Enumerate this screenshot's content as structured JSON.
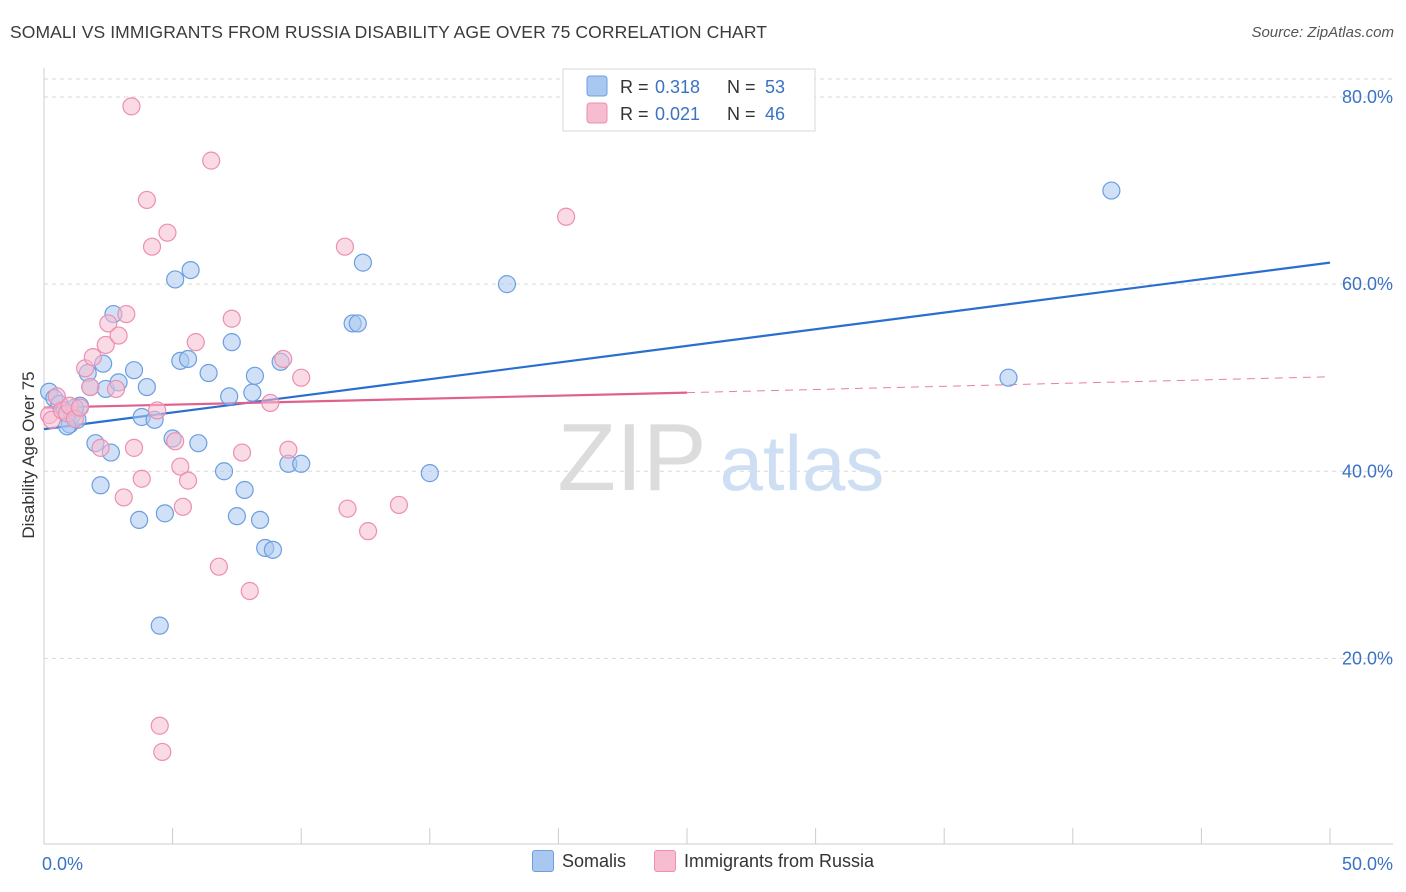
{
  "title": "SOMALI VS IMMIGRANTS FROM RUSSIA DISABILITY AGE OVER 75 CORRELATION CHART",
  "source": "Source: ZipAtlas.com",
  "watermark": {
    "zip": "ZIP",
    "atlas": "atlas"
  },
  "colors": {
    "somali_fill": "#a9c8f0",
    "somali_stroke": "#6c9ee0",
    "somali_line": "#2a6fd0",
    "russia_fill": "#f6bcd0",
    "russia_stroke": "#ec8fb0",
    "russia_line": "#e0608e",
    "tick_label": "#3a72c4",
    "grid": "#d9d9d9"
  },
  "legend": {
    "somali": {
      "r_label": "R =",
      "r_value": "0.318",
      "n_label": "N =",
      "n_value": "53"
    },
    "russia": {
      "r_label": "R =",
      "r_value": "0.021",
      "n_label": "N =",
      "n_value": "46"
    }
  },
  "chart_data": {
    "type": "scatter",
    "title": "SOMALI VS IMMIGRANTS FROM RUSSIA DISABILITY AGE OVER 75 CORRELATION CHART",
    "xlabel": "",
    "ylabel": "Disability Age Over 75",
    "xlim": [
      0,
      50
    ],
    "ylim": [
      0,
      85
    ],
    "x_tick_labels": {
      "min": "0.0%",
      "max": "50.0%"
    },
    "y_ticks": [
      20,
      40,
      60,
      80
    ],
    "y_tick_labels": [
      "20.0%",
      "40.0%",
      "60.0%",
      "80.0%"
    ],
    "series": [
      {
        "name": "Somalis",
        "color": "#6c9ee0",
        "points": [
          [
            0.2,
            48.5
          ],
          [
            0.4,
            47.8
          ],
          [
            0.6,
            47.2
          ],
          [
            0.8,
            46.5
          ],
          [
            1.0,
            45.0
          ],
          [
            1.1,
            46.0
          ],
          [
            1.3,
            45.5
          ],
          [
            1.4,
            47.0
          ],
          [
            1.7,
            50.5
          ],
          [
            1.8,
            49.0
          ],
          [
            2.0,
            43.0
          ],
          [
            2.2,
            38.5
          ],
          [
            2.4,
            48.8
          ],
          [
            2.3,
            51.5
          ],
          [
            2.7,
            56.8
          ],
          [
            2.9,
            49.5
          ],
          [
            2.6,
            42.0
          ],
          [
            3.5,
            50.8
          ],
          [
            3.8,
            45.8
          ],
          [
            4.0,
            49.0
          ],
          [
            3.7,
            34.8
          ],
          [
            4.3,
            45.5
          ],
          [
            4.5,
            23.5
          ],
          [
            4.7,
            35.5
          ],
          [
            5.0,
            43.5
          ],
          [
            5.1,
            60.5
          ],
          [
            5.3,
            51.8
          ],
          [
            5.6,
            52.0
          ],
          [
            5.7,
            61.5
          ],
          [
            6.0,
            43.0
          ],
          [
            6.4,
            50.5
          ],
          [
            7.0,
            40.0
          ],
          [
            7.3,
            53.8
          ],
          [
            7.2,
            48.0
          ],
          [
            7.5,
            35.2
          ],
          [
            7.8,
            38.0
          ],
          [
            8.1,
            48.4
          ],
          [
            8.2,
            50.2
          ],
          [
            8.4,
            34.8
          ],
          [
            8.6,
            31.8
          ],
          [
            8.9,
            31.6
          ],
          [
            9.2,
            51.7
          ],
          [
            9.5,
            40.8
          ],
          [
            10.0,
            40.8
          ],
          [
            12.0,
            55.8
          ],
          [
            12.2,
            55.8
          ],
          [
            12.4,
            62.3
          ],
          [
            15.0,
            39.8
          ],
          [
            18.0,
            60.0
          ],
          [
            37.5,
            50.0
          ],
          [
            41.5,
            70.0
          ],
          [
            0.9,
            44.8
          ],
          [
            1.2,
            46.8
          ]
        ]
      },
      {
        "name": "Immigrants from Russia",
        "color": "#ec8fb0",
        "points": [
          [
            0.2,
            46.0
          ],
          [
            0.3,
            45.5
          ],
          [
            0.5,
            48.0
          ],
          [
            0.7,
            46.5
          ],
          [
            0.9,
            46.2
          ],
          [
            1.0,
            47.0
          ],
          [
            1.2,
            45.6
          ],
          [
            1.4,
            46.8
          ],
          [
            1.6,
            51.0
          ],
          [
            1.8,
            49.0
          ],
          [
            1.9,
            52.2
          ],
          [
            2.2,
            42.5
          ],
          [
            2.4,
            53.5
          ],
          [
            2.5,
            55.8
          ],
          [
            2.8,
            48.8
          ],
          [
            2.9,
            54.5
          ],
          [
            3.1,
            37.2
          ],
          [
            3.2,
            56.8
          ],
          [
            3.5,
            42.5
          ],
          [
            3.8,
            39.2
          ],
          [
            4.0,
            69.0
          ],
          [
            4.2,
            64.0
          ],
          [
            4.4,
            46.5
          ],
          [
            4.5,
            12.8
          ],
          [
            4.6,
            10.0
          ],
          [
            4.8,
            65.5
          ],
          [
            5.1,
            43.2
          ],
          [
            5.3,
            40.5
          ],
          [
            5.4,
            36.2
          ],
          [
            5.6,
            39.0
          ],
          [
            5.9,
            53.8
          ],
          [
            6.5,
            73.2
          ],
          [
            6.8,
            29.8
          ],
          [
            7.3,
            56.3
          ],
          [
            7.7,
            42.0
          ],
          [
            8.0,
            27.2
          ],
          [
            8.8,
            47.3
          ],
          [
            9.3,
            52.0
          ],
          [
            9.5,
            42.3
          ],
          [
            10.0,
            50.0
          ],
          [
            11.7,
            64.0
          ],
          [
            11.8,
            36.0
          ],
          [
            12.6,
            33.6
          ],
          [
            13.8,
            36.4
          ],
          [
            20.3,
            67.2
          ],
          [
            3.4,
            79.0
          ]
        ]
      }
    ],
    "trendlines": [
      {
        "series": "Somalis",
        "x": [
          0,
          50
        ],
        "y": [
          44.5,
          62.3
        ],
        "style": "solid"
      },
      {
        "series": "Immigrants from Russia",
        "x": [
          0,
          25
        ],
        "y": [
          46.8,
          48.4
        ],
        "style": "solid"
      },
      {
        "series": "Immigrants from Russia",
        "x": [
          25,
          50
        ],
        "y": [
          48.4,
          50.1
        ],
        "style": "dashed"
      }
    ],
    "legend_entries": [
      "Somalis",
      "Immigrants from Russia"
    ]
  }
}
